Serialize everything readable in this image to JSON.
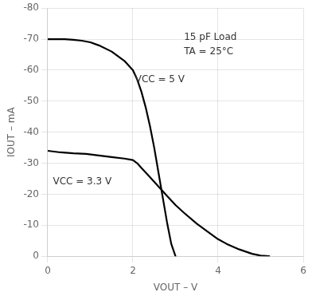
{
  "chart_data": {
    "type": "line",
    "xlabel": "VOUT – V",
    "ylabel": "IOUT – mA",
    "xlim": [
      0,
      6
    ],
    "xticks": [
      0,
      2,
      4,
      6
    ],
    "ylim": [
      -80,
      0
    ],
    "yticks": [
      -80,
      -70,
      -60,
      -50,
      -40,
      -30,
      -20,
      -10,
      0
    ],
    "y_reversed": true,
    "grid": true,
    "series": [
      {
        "color": "#000000",
        "x": [
          0,
          0.2,
          0.4,
          0.6,
          0.8,
          1.0,
          1.2,
          1.5,
          1.8,
          2.0,
          2.1,
          2.2,
          2.3,
          2.4,
          2.5,
          2.6,
          2.7,
          2.8,
          2.9,
          3.0
        ],
        "values": [
          -70,
          -70,
          -70,
          -69.8,
          -69.5,
          -69,
          -68,
          -66,
          -63,
          -60,
          -57,
          -53,
          -48,
          -42,
          -35,
          -27,
          -19,
          -11,
          -4,
          0
        ]
      },
      {
        "color": "#000000",
        "x": [
          0,
          0.3,
          0.6,
          0.9,
          1.2,
          1.5,
          1.8,
          2.0,
          2.1,
          2.2,
          2.4,
          2.6,
          2.8,
          3.0,
          3.2,
          3.5,
          3.8,
          4.0,
          4.2,
          4.5,
          4.8,
          5.0,
          5.2
        ],
        "values": [
          -34,
          -33.5,
          -33.2,
          -33,
          -32.5,
          -32,
          -31.5,
          -31,
          -30,
          -28.5,
          -25.5,
          -22.5,
          -19.5,
          -16.5,
          -14,
          -10.5,
          -7.5,
          -5.5,
          -4,
          -2.2,
          -0.8,
          -0.2,
          0
        ]
      }
    ],
    "annotations": [
      {
        "text": [
          "VCC = 5 V"
        ],
        "x": 2.05,
        "y": -57,
        "anchor": "middle"
      },
      {
        "text": [
          "VCC = 3.3 V"
        ],
        "x": 0.12,
        "y": -24,
        "anchor": "middle"
      },
      {
        "text": [
          "15 pF Load",
          "TA = 25°C"
        ],
        "x": 3.2,
        "y": -72,
        "anchor": "top"
      }
    ],
    "legend": false
  }
}
